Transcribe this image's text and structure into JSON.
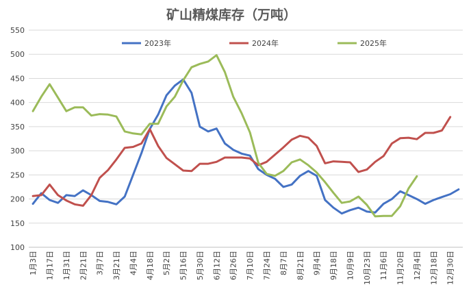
{
  "chart_data": {
    "type": "line",
    "title": "矿山精煤库存（万吨）",
    "xlabel": "",
    "ylabel": "",
    "ylim": [
      100,
      550
    ],
    "yticks": [
      100,
      150,
      200,
      250,
      300,
      350,
      400,
      450,
      500,
      550
    ],
    "n_points": 52,
    "x_tick_labels": [
      "1月3日",
      "1月17日",
      "1月31日",
      "2月21日",
      "3月7日",
      "3月21日",
      "4月4日",
      "4月18日",
      "5月2日",
      "5月16日",
      "5月30日",
      "6月12日",
      "6月26日",
      "7月10日",
      "7月24日",
      "8月7日",
      "8月21日",
      "9月4日",
      "9月18日",
      "10月9日",
      "10月23日",
      "11月6日",
      "11月20日",
      "12月4日",
      "12月18日",
      "12月30日"
    ],
    "legend_position": "top",
    "series": [
      {
        "name": "2023年",
        "color": "#4472C4",
        "values": [
          190,
          212,
          198,
          192,
          208,
          206,
          218,
          208,
          196,
          194,
          189,
          205,
          250,
          295,
          345,
          375,
          415,
          435,
          448,
          420,
          350,
          340,
          346,
          315,
          302,
          294,
          290,
          262,
          250,
          242,
          225,
          230,
          248,
          258,
          248,
          198,
          182,
          170,
          177,
          182,
          174,
          172,
          190,
          200,
          216,
          208,
          200,
          190,
          198,
          204,
          210,
          220
        ]
      },
      {
        "name": "2024年",
        "color": "#C0504D",
        "values": [
          206,
          208,
          230,
          208,
          197,
          189,
          186,
          208,
          244,
          260,
          282,
          306,
          308,
          315,
          345,
          310,
          285,
          272,
          259,
          258,
          273,
          273,
          277,
          286,
          286,
          286,
          284,
          270,
          277,
          292,
          307,
          323,
          331,
          327,
          310,
          274,
          278,
          277,
          276,
          256,
          261,
          277,
          289,
          315,
          326,
          327,
          324,
          337,
          337,
          342,
          370
        ]
      },
      {
        "name": "2025年",
        "color": "#9BBB59",
        "values": [
          382,
          412,
          438,
          410,
          382,
          390,
          390,
          373,
          376,
          375,
          371,
          340,
          336,
          334,
          356,
          356,
          392,
          412,
          446,
          473,
          480,
          485,
          498,
          463,
          412,
          378,
          338,
          275,
          252,
          248,
          258,
          276,
          282,
          270,
          255,
          235,
          213,
          192,
          195,
          205,
          188,
          164,
          165,
          165,
          185,
          222,
          247
        ]
      }
    ]
  }
}
